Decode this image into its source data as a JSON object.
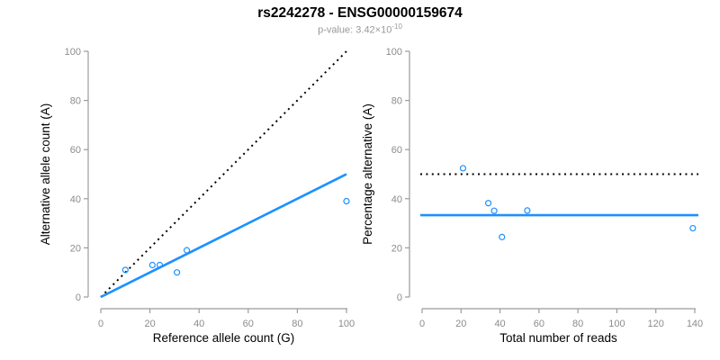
{
  "header": {
    "title": "rs2242278 - ENSG00000159674",
    "subtitle_main": "p-value: 3.42×10",
    "subtitle_exponent": "-10"
  },
  "colors": {
    "point_blue": "#1E90FF",
    "line_blue": "#1E90FF",
    "identity_black": "#000000",
    "axis_gray": "#9B9B9B",
    "tick_label_gray": "#8C8C8C",
    "subtitle_gray": "#999999"
  },
  "chart_data": [
    {
      "type": "scatter",
      "title": "",
      "xlabel": "Reference allele count (G)",
      "ylabel": "Alternative allele count (A)",
      "xlim": [
        0,
        100
      ],
      "ylim": [
        0,
        100
      ],
      "xticks": [
        0,
        20,
        40,
        60,
        80,
        100
      ],
      "yticks": [
        0,
        20,
        40,
        60,
        80,
        100
      ],
      "grid": false,
      "legend": "none",
      "point_color": "#1E90FF",
      "points": [
        [
          10,
          11
        ],
        [
          21,
          13
        ],
        [
          24,
          13
        ],
        [
          31,
          10
        ],
        [
          35,
          19
        ],
        [
          100,
          39
        ]
      ],
      "lines": [
        {
          "name": "identity-dotted",
          "style": "dotted",
          "color": "#000000",
          "from": [
            0,
            0
          ],
          "to": [
            100,
            100
          ]
        },
        {
          "name": "fit-solid",
          "style": "solid",
          "color": "#1E90FF",
          "from": [
            0,
            0
          ],
          "to": [
            100,
            50
          ]
        }
      ]
    },
    {
      "type": "scatter",
      "title": "",
      "xlabel": "Total number of reads",
      "ylabel": "Percentage alternative (A)",
      "xlim": [
        0,
        140
      ],
      "ylim": [
        0,
        100
      ],
      "xticks": [
        0,
        20,
        40,
        60,
        80,
        100,
        120,
        140
      ],
      "yticks": [
        0,
        20,
        40,
        60,
        80,
        100
      ],
      "grid": false,
      "legend": "none",
      "point_color": "#1E90FF",
      "points": [
        [
          21,
          52.4
        ],
        [
          34,
          38.2
        ],
        [
          37,
          35.1
        ],
        [
          41,
          24.4
        ],
        [
          54,
          35.2
        ],
        [
          139,
          28
        ]
      ],
      "lines": [
        {
          "name": "expected-50pct-dotted",
          "style": "dotted",
          "color": "#000000",
          "hline": 50
        },
        {
          "name": "observed-ratio-solid",
          "style": "solid",
          "color": "#1E90FF",
          "hline": 33.3
        }
      ]
    }
  ]
}
